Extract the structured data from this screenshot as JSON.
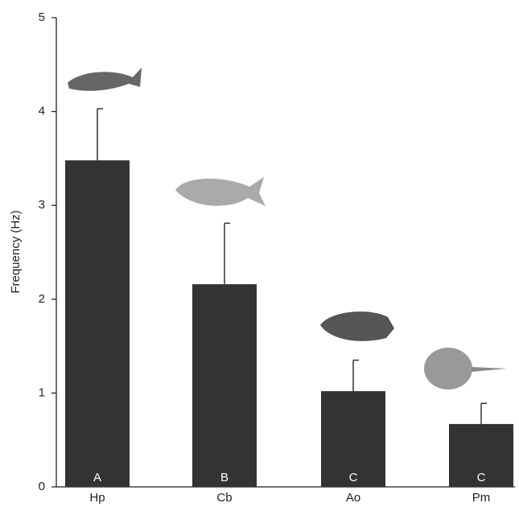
{
  "chart_data": {
    "type": "bar",
    "y_label": "Frequency (Hz)",
    "categories": [
      "Hp",
      "Cb",
      "Ao",
      "Pm"
    ],
    "values": [
      3.48,
      2.16,
      1.02,
      0.67
    ],
    "errors": [
      0.55,
      0.65,
      0.33,
      0.22
    ],
    "group_labels": [
      "A",
      "B",
      "C",
      "C"
    ],
    "color": "#333333",
    "ylim": [
      0,
      5
    ],
    "yticks": [
      0,
      1,
      2,
      3,
      4,
      5
    ]
  }
}
